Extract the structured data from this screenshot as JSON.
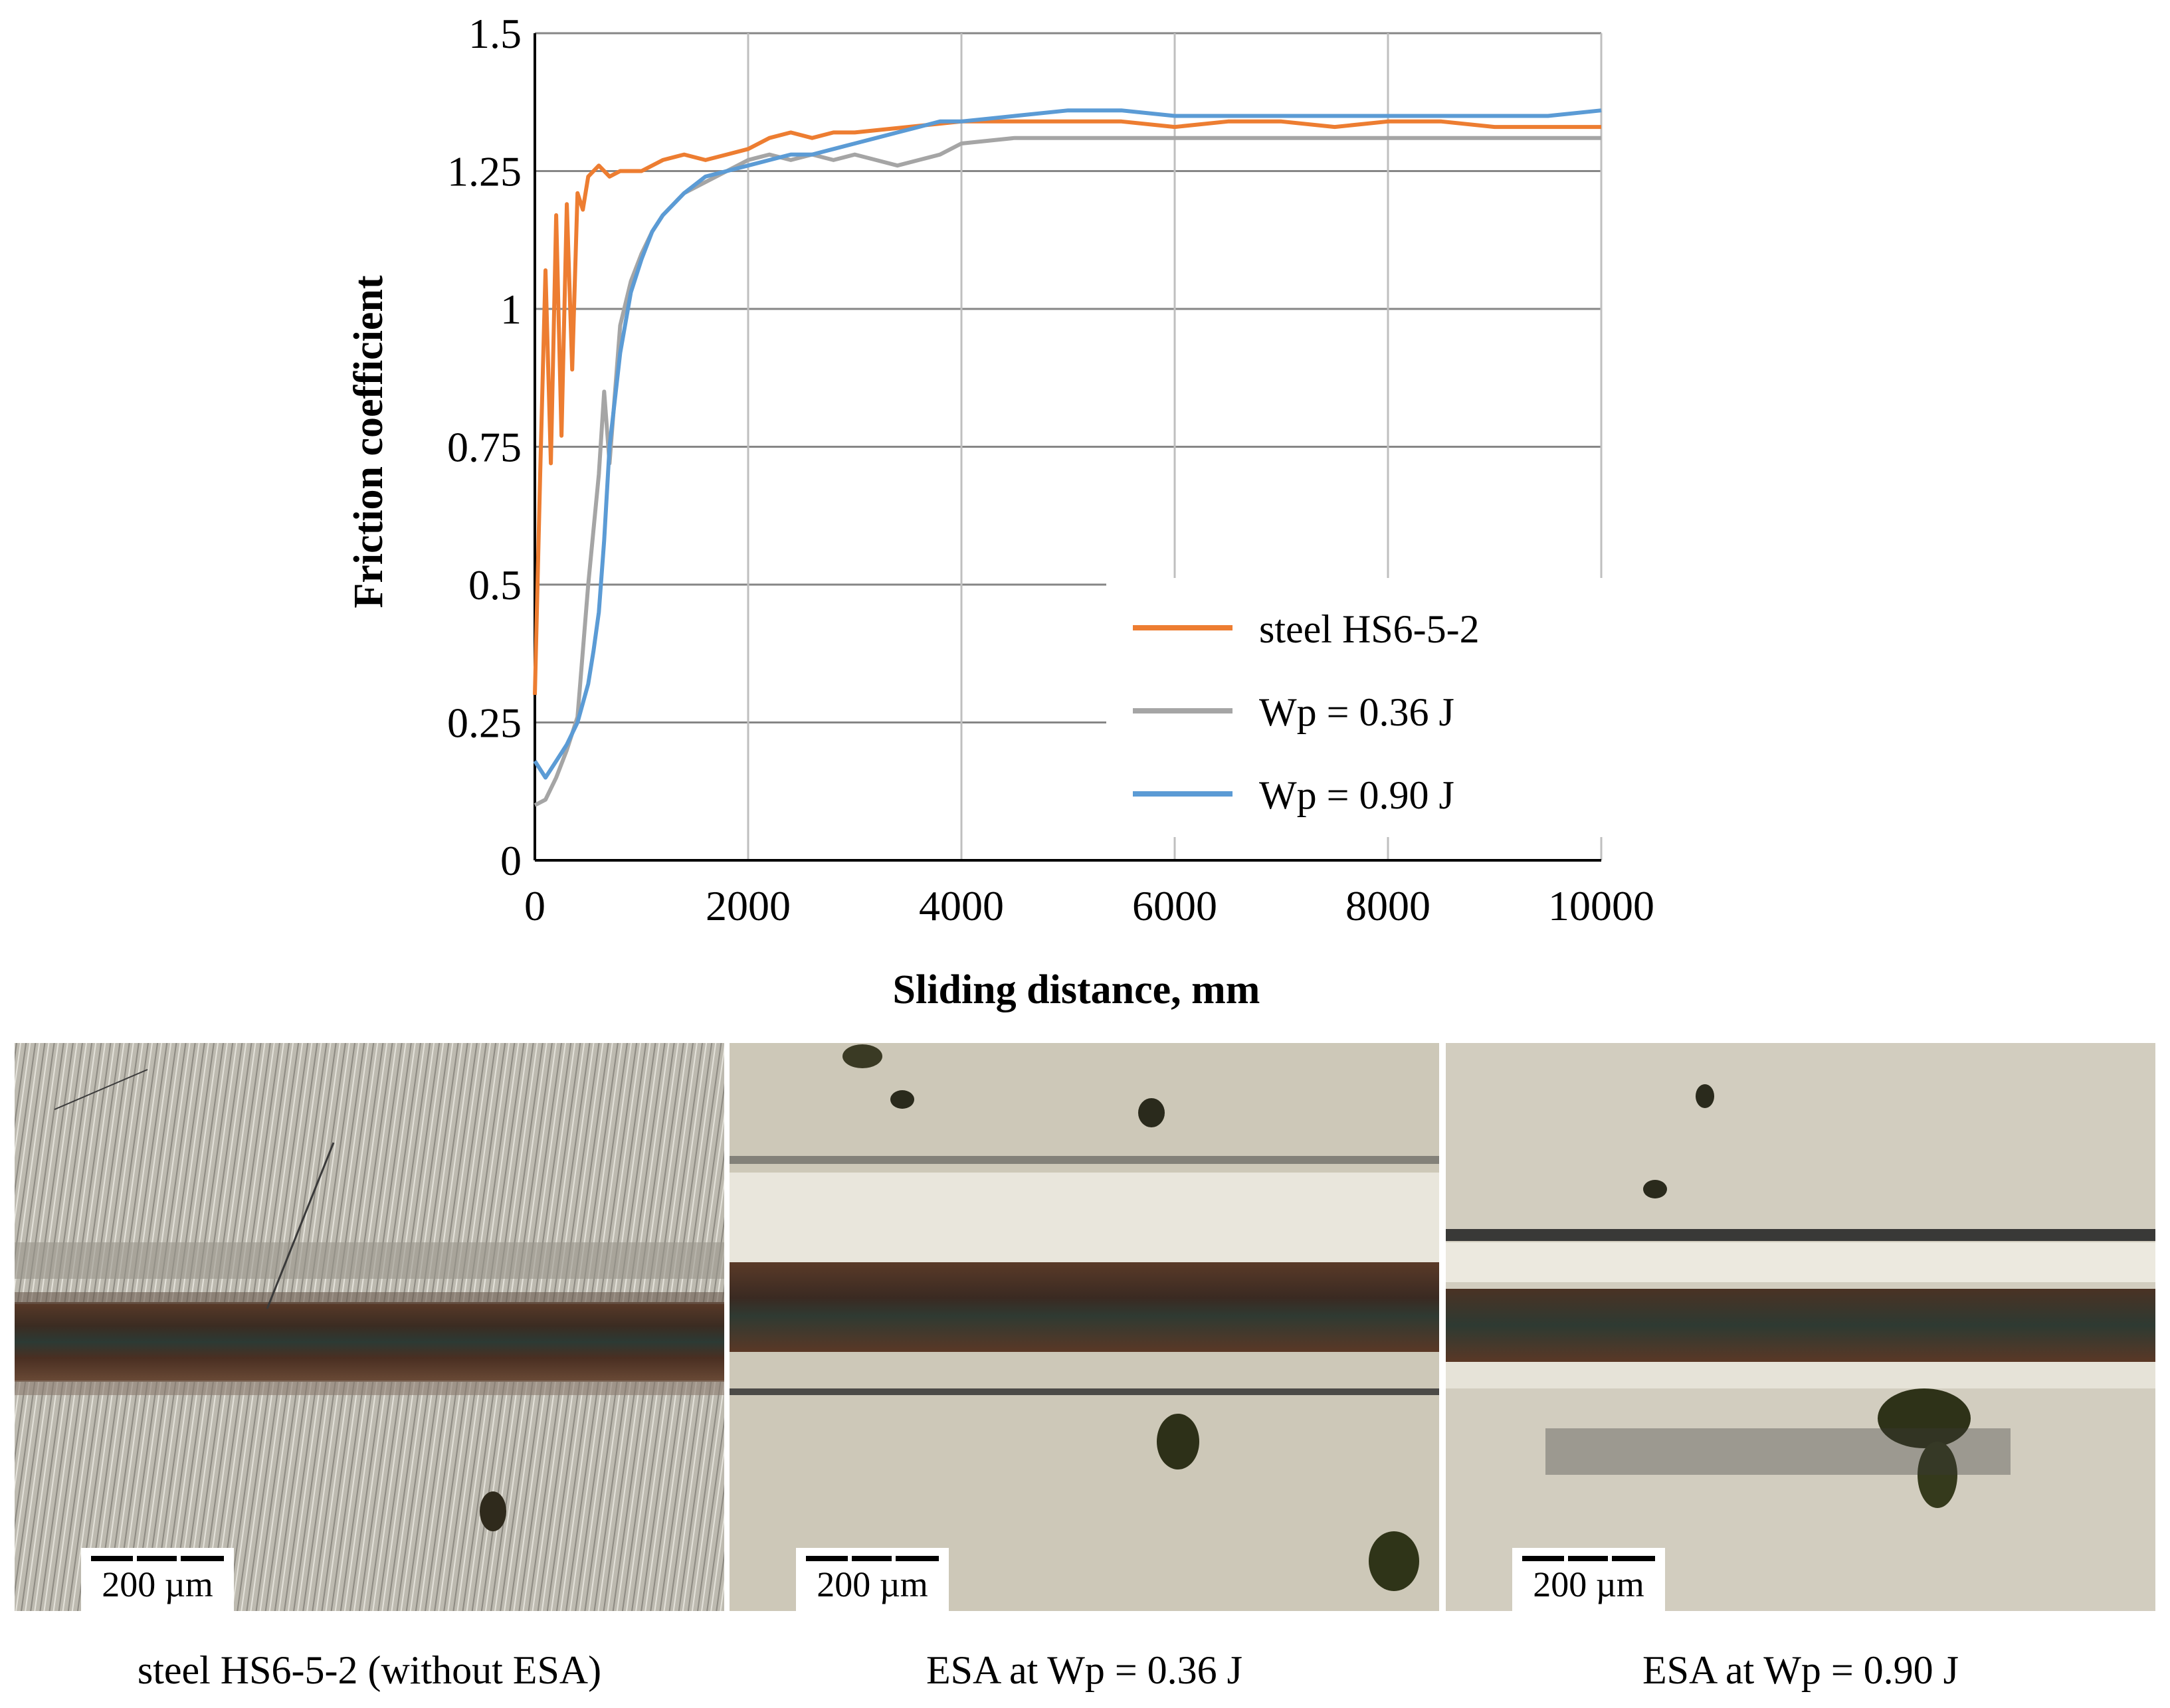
{
  "chart_data": {
    "type": "line",
    "xlabel": "Sliding distance, mm",
    "ylabel": "Friction coefficient",
    "xlim": [
      0,
      10000
    ],
    "ylim": [
      0,
      1.5
    ],
    "x_ticks": [
      "0",
      "2000",
      "4000",
      "6000",
      "8000",
      "10000"
    ],
    "y_ticks": [
      "0",
      "0.25",
      "0.5",
      "0.75",
      "1",
      "1.25",
      "1.5"
    ],
    "grid": true,
    "legend_position": "center-right",
    "series": [
      {
        "name": "steel HS6-5-2",
        "color": "#ED7D31",
        "x": [
          0,
          50,
          100,
          150,
          200,
          250,
          300,
          350,
          400,
          450,
          500,
          600,
          700,
          800,
          1000,
          1200,
          1400,
          1600,
          1800,
          2000,
          2200,
          2400,
          2600,
          2800,
          3000,
          3500,
          4000,
          4500,
          5000,
          5500,
          6000,
          6500,
          7000,
          7500,
          8000,
          8500,
          9000,
          9500,
          10000
        ],
        "y": [
          0.3,
          0.7,
          1.07,
          0.72,
          1.17,
          0.77,
          1.19,
          0.89,
          1.21,
          1.18,
          1.24,
          1.26,
          1.24,
          1.25,
          1.25,
          1.27,
          1.28,
          1.27,
          1.28,
          1.29,
          1.31,
          1.32,
          1.31,
          1.32,
          1.32,
          1.33,
          1.34,
          1.34,
          1.34,
          1.34,
          1.33,
          1.34,
          1.34,
          1.33,
          1.34,
          1.34,
          1.33,
          1.33,
          1.33
        ]
      },
      {
        "name": "Wp = 0.36 J",
        "color": "#A5A5A5",
        "x": [
          0,
          100,
          200,
          300,
          400,
          500,
          550,
          600,
          650,
          700,
          800,
          900,
          1000,
          1100,
          1200,
          1400,
          1600,
          1800,
          2000,
          2200,
          2400,
          2600,
          2800,
          3000,
          3200,
          3400,
          3600,
          3800,
          4000,
          4500,
          5000,
          5500,
          6000,
          6500,
          7000,
          7500,
          8000,
          8500,
          9000,
          9500,
          10000
        ],
        "y": [
          0.1,
          0.11,
          0.15,
          0.2,
          0.26,
          0.5,
          0.6,
          0.7,
          0.85,
          0.72,
          0.97,
          1.05,
          1.1,
          1.14,
          1.17,
          1.21,
          1.23,
          1.25,
          1.27,
          1.28,
          1.27,
          1.28,
          1.27,
          1.28,
          1.27,
          1.26,
          1.27,
          1.28,
          1.3,
          1.31,
          1.31,
          1.31,
          1.31,
          1.31,
          1.31,
          1.31,
          1.31,
          1.31,
          1.31,
          1.31,
          1.31
        ]
      },
      {
        "name": "Wp = 0.90 J",
        "color": "#5B9BD5",
        "x": [
          0,
          100,
          200,
          300,
          400,
          500,
          550,
          600,
          650,
          700,
          800,
          900,
          1000,
          1100,
          1200,
          1400,
          1600,
          1800,
          2000,
          2200,
          2400,
          2600,
          2800,
          3000,
          3200,
          3400,
          3600,
          3800,
          4000,
          4500,
          5000,
          5500,
          6000,
          6500,
          7000,
          7500,
          8000,
          8500,
          9000,
          9500,
          10000
        ],
        "y": [
          0.18,
          0.15,
          0.18,
          0.21,
          0.25,
          0.32,
          0.38,
          0.45,
          0.58,
          0.75,
          0.92,
          1.03,
          1.09,
          1.14,
          1.17,
          1.21,
          1.24,
          1.25,
          1.26,
          1.27,
          1.28,
          1.28,
          1.29,
          1.3,
          1.31,
          1.32,
          1.33,
          1.34,
          1.34,
          1.35,
          1.36,
          1.36,
          1.35,
          1.35,
          1.35,
          1.35,
          1.35,
          1.35,
          1.35,
          1.35,
          1.36
        ]
      }
    ]
  },
  "panels": [
    {
      "scale_label": "200 µm",
      "caption": "steel HS6-5-2 (without ESA)"
    },
    {
      "scale_label": "200 µm",
      "caption": "ESA at Wp = 0.36 J"
    },
    {
      "scale_label": "200 µm",
      "caption": "ESA at Wp = 0.90 J"
    }
  ]
}
